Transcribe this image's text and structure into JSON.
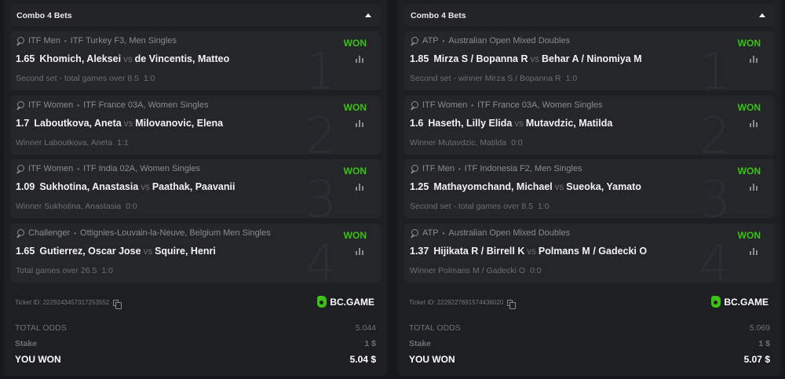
{
  "colors": {
    "won": "#3bc117",
    "background": "#17181b",
    "panel": "#1e1f23",
    "card": "#25262a"
  },
  "icons": {
    "sport": "tennis-racket-icon",
    "stats": "bar-chart-icon",
    "copy": "copy-icon",
    "collapse": "caret-up-icon"
  },
  "tickets": [
    {
      "title": "Combo 4 Bets",
      "bets": [
        {
          "league": "ITF Men",
          "tournament": "ITF Turkey F3, Men Singles",
          "odds": "1.65",
          "home": "Khomich, Aleksei",
          "vs": "vs",
          "away": "de Vincentis, Matteo",
          "selection": "Second set - total games over 8.5",
          "score": "1:0",
          "status": "WON",
          "index": "1"
        },
        {
          "league": "ITF Women",
          "tournament": "ITF France 03A, Women Singles",
          "odds": "1.7",
          "home": "Laboutkova, Aneta",
          "vs": "vs",
          "away": "Milovanovic, Elena",
          "selection": "Winner Laboutkova, Aneta",
          "score": "1:1",
          "status": "WON",
          "index": "2"
        },
        {
          "league": "ITF Women",
          "tournament": "ITF India 02A, Women Singles",
          "odds": "1.09",
          "home": "Sukhotina, Anastasia",
          "vs": "vs",
          "away": "Paathak, Paavanii",
          "selection": "Winner Sukhotina, Anastasia",
          "score": "0:0",
          "status": "WON",
          "index": "3"
        },
        {
          "league": "Challenger",
          "tournament": "Ottignies-Louvain-la-Neuve, Belgium Men Singles",
          "odds": "1.65",
          "home": "Gutierrez, Oscar Jose",
          "vs": "vs",
          "away": "Squire, Henri",
          "selection": "Total games over 26.5",
          "score": "1:0",
          "status": "WON",
          "index": "4"
        }
      ],
      "ticket_id": "Ticket ID: 2229243457317253552",
      "brand": "BC.GAME",
      "total_odds_label": "TOTAL ODDS",
      "total_odds": "5.044",
      "stake_label": "Stake",
      "stake": "1 $",
      "won_label": "YOU WON",
      "won": "5.04 $"
    },
    {
      "title": "Combo 4 Bets",
      "bets": [
        {
          "league": "ATP",
          "tournament": "Australian Open Mixed Doubles",
          "odds": "1.85",
          "home": "Mirza S / Bopanna R",
          "vs": "vs",
          "away": "Behar A / Ninomiya M",
          "selection": "Second set - winner Mirza S / Bopanna R",
          "score": "1:0",
          "status": "WON",
          "index": "1"
        },
        {
          "league": "ITF Women",
          "tournament": "ITF France 03A, Women Singles",
          "odds": "1.6",
          "home": "Haseth, Lilly Elida",
          "vs": "vs",
          "away": "Mutavdzic, Matilda",
          "selection": "Winner Mutavdzic, Matilda",
          "score": "0:0",
          "status": "WON",
          "index": "2"
        },
        {
          "league": "ITF Men",
          "tournament": "ITF Indonesia F2, Men Singles",
          "odds": "1.25",
          "home": "Mathayomchand, Michael",
          "vs": "vs",
          "away": "Sueoka, Yamato",
          "selection": "Second set - total games over 8.5",
          "score": "1:0",
          "status": "WON",
          "index": "3"
        },
        {
          "league": "ATP",
          "tournament": "Australian Open Mixed Doubles",
          "odds": "1.37",
          "home": "Hijikata R / Birrell K",
          "vs": "vs",
          "away": "Polmans M / Gadecki O",
          "selection": "Winner Polmans M / Gadecki O",
          "score": "0:0",
          "status": "WON",
          "index": "4"
        }
      ],
      "ticket_id": "Ticket ID: 2229227691574436020",
      "brand": "BC.GAME",
      "total_odds_label": "TOTAL ODDS",
      "total_odds": "5.069",
      "stake_label": "Stake",
      "stake": "1 $",
      "won_label": "YOU WON",
      "won": "5.07 $"
    }
  ]
}
